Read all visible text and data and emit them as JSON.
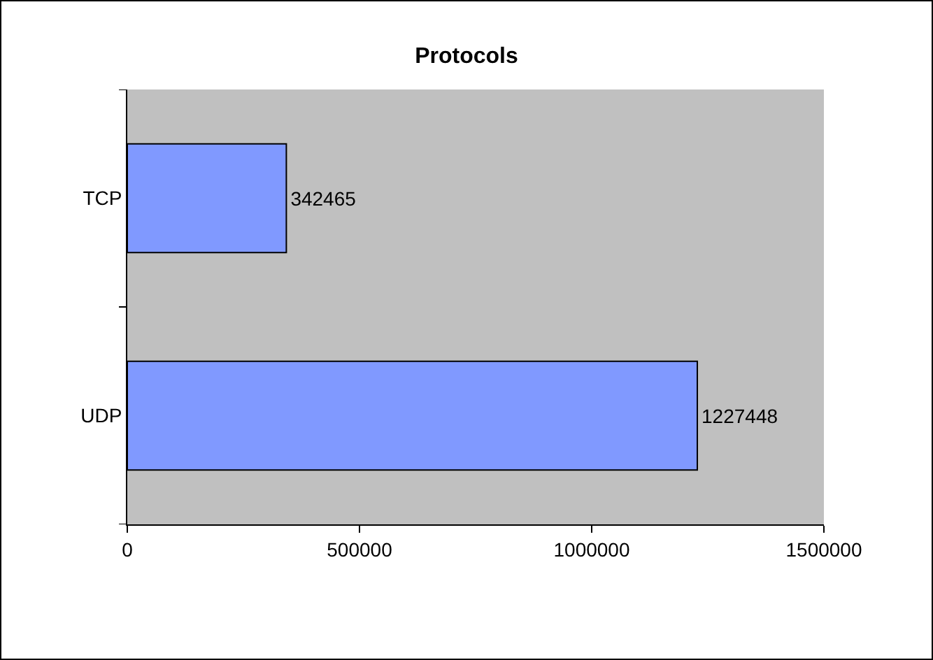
{
  "chart_data": {
    "type": "bar",
    "orientation": "horizontal",
    "title": "Protocols",
    "categories": [
      "TCP",
      "UDP"
    ],
    "values": [
      342465,
      1227448
    ],
    "color": "#8099ff",
    "xlim": [
      0,
      1500000
    ],
    "xticks": [
      0,
      500000,
      1000000,
      1500000
    ],
    "data_labels": true
  }
}
